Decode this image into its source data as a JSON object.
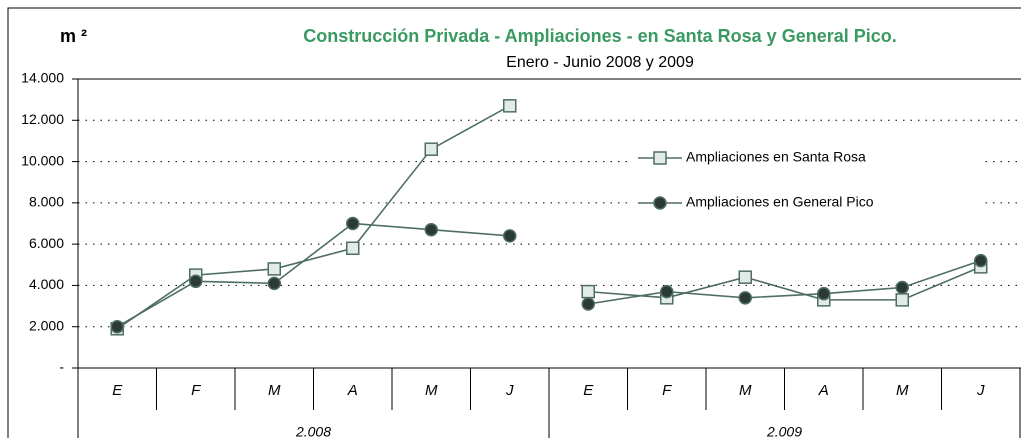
{
  "chart_data": {
    "type": "line",
    "title": "Construcción Privada - Ampliaciones - en Santa Rosa y General Pico.",
    "subtitle": "Enero -  Junio 2008 y 2009",
    "ylabel": "m ²",
    "groups": [
      {
        "label": "2.008",
        "categories": [
          "E",
          "F",
          "M",
          "A",
          "M",
          "J"
        ]
      },
      {
        "label": "2.009",
        "categories": [
          "E",
          "F",
          "M",
          "A",
          "M",
          "J"
        ]
      }
    ],
    "series": [
      {
        "name": "Ampliaciones en Santa Rosa",
        "color": "#4f6e62",
        "marker": "square",
        "marker_color": "#e2ece6",
        "values": [
          [
            1900,
            4500,
            4800,
            5800,
            10600,
            12700
          ],
          [
            3700,
            3400,
            4400,
            3300,
            3300,
            4900
          ]
        ]
      },
      {
        "name": "Ampliaciones en General Pico",
        "color": "#4f6e62",
        "marker": "circle",
        "marker_color": "#2c3a34",
        "values": [
          [
            2000,
            4200,
            4100,
            7000,
            6700,
            6400
          ],
          [
            3100,
            3700,
            3400,
            3600,
            3900,
            5200
          ]
        ]
      }
    ],
    "ylim": [
      0,
      14000
    ],
    "yticks": [
      {
        "value": 0,
        "label": "-"
      },
      {
        "value": 2000,
        "label": "2.000"
      },
      {
        "value": 4000,
        "label": "4.000"
      },
      {
        "value": 6000,
        "label": "6.000"
      },
      {
        "value": 8000,
        "label": "8.000"
      },
      {
        "value": 10000,
        "label": "10.000"
      },
      {
        "value": 12000,
        "label": "12.000"
      },
      {
        "value": 14000,
        "label": "14.000"
      }
    ],
    "grid": true,
    "legend": "right"
  }
}
